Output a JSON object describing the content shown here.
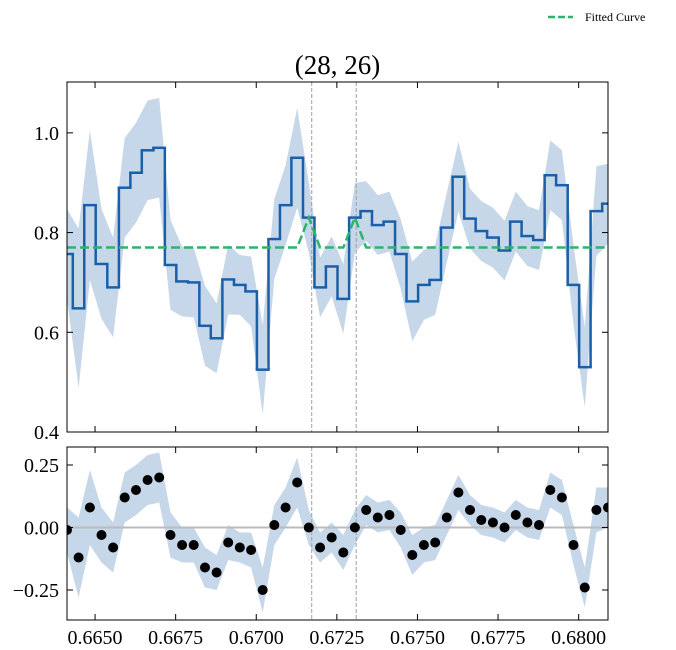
{
  "chart_data": [
    {
      "type": "step",
      "title": "(28, 26)",
      "legend": "upper right",
      "x": [
        0.66413,
        0.66449,
        0.66484,
        0.6652,
        0.66556,
        0.66592,
        0.66627,
        0.66663,
        0.66699,
        0.66734,
        0.6677,
        0.66806,
        0.66841,
        0.66877,
        0.66913,
        0.66949,
        0.66984,
        0.6702,
        0.67056,
        0.67091,
        0.67127,
        0.67163,
        0.67198,
        0.67234,
        0.6727,
        0.67306,
        0.67341,
        0.67377,
        0.67413,
        0.67448,
        0.67484,
        0.6752,
        0.67555,
        0.67591,
        0.67627,
        0.67663,
        0.67698,
        0.67734,
        0.6777,
        0.67805,
        0.67841,
        0.67877,
        0.67912,
        0.67948,
        0.67984,
        0.68019,
        0.68055,
        0.68091
      ],
      "xlim": [
        0.66413,
        0.68091
      ],
      "xticks": [
        0.665,
        0.6675,
        0.67,
        0.6725,
        0.675,
        0.6775,
        0.68
      ],
      "ylim": [
        0.4,
        1.102
      ],
      "yticks": [
        0.4,
        0.6,
        0.8,
        {
          "value": 1.0,
          "label": "1.0"
        }
      ],
      "vlines": [
        0.67172,
        0.6731
      ],
      "series": [
        {
          "color": "#1a5fa8",
          "band_color": "#c6d7ea",
          "values": [
            0.757,
            0.648,
            0.855,
            0.737,
            0.69,
            0.89,
            0.92,
            0.965,
            0.97,
            0.735,
            0.702,
            0.7,
            0.613,
            0.588,
            0.706,
            0.695,
            0.682,
            0.525,
            0.787,
            0.855,
            0.95,
            0.83,
            0.69,
            0.732,
            0.667,
            0.83,
            0.843,
            0.815,
            0.822,
            0.757,
            0.662,
            0.695,
            0.705,
            0.81,
            0.912,
            0.828,
            0.803,
            0.79,
            0.764,
            0.822,
            0.793,
            0.785,
            0.915,
            0.895,
            0.695,
            0.53,
            0.843,
            0.858
          ],
          "errors": [
            0.09,
            0.16,
            0.15,
            0.11,
            0.1,
            0.1,
            0.1,
            0.1,
            0.1,
            0.09,
            0.07,
            0.07,
            0.08,
            0.07,
            0.07,
            0.06,
            0.07,
            0.09,
            0.08,
            0.08,
            0.1,
            0.07,
            0.06,
            0.06,
            0.07,
            0.07,
            0.06,
            0.06,
            0.06,
            0.07,
            0.08,
            0.07,
            0.07,
            0.07,
            0.07,
            0.06,
            0.06,
            0.06,
            0.06,
            0.06,
            0.06,
            0.06,
            0.07,
            0.07,
            0.08,
            0.08,
            0.09,
            0.08
          ]
        },
        {
          "name": "Fitted Curve",
          "color": "#2eb36b",
          "dashed": true,
          "values": [
            0.77,
            0.77,
            0.77,
            0.77,
            0.77,
            0.77,
            0.77,
            0.77,
            0.77,
            0.77,
            0.77,
            0.77,
            0.77,
            0.77,
            0.77,
            0.77,
            0.77,
            0.77,
            0.77,
            0.77,
            0.77,
            0.83,
            0.77,
            0.77,
            0.77,
            0.83,
            0.77,
            0.77,
            0.77,
            0.77,
            0.77,
            0.77,
            0.77,
            0.77,
            0.77,
            0.77,
            0.77,
            0.77,
            0.77,
            0.77,
            0.77,
            0.77,
            0.77,
            0.77,
            0.77,
            0.77,
            0.77,
            0.77
          ]
        }
      ]
    },
    {
      "type": "scatter",
      "x": [
        0.66413,
        0.66449,
        0.66484,
        0.6652,
        0.66556,
        0.66592,
        0.66627,
        0.66663,
        0.66699,
        0.66734,
        0.6677,
        0.66806,
        0.66841,
        0.66877,
        0.66913,
        0.66949,
        0.66984,
        0.6702,
        0.67056,
        0.67091,
        0.67127,
        0.67163,
        0.67198,
        0.67234,
        0.6727,
        0.67306,
        0.67341,
        0.67377,
        0.67413,
        0.67448,
        0.67484,
        0.6752,
        0.67555,
        0.67591,
        0.67627,
        0.67663,
        0.67698,
        0.67734,
        0.6777,
        0.67805,
        0.67841,
        0.67877,
        0.67912,
        0.67948,
        0.67984,
        0.68019,
        0.68055,
        0.68091
      ],
      "xlim": [
        0.66413,
        0.68091
      ],
      "xticks": [
        {
          "value": 0.665,
          "label": "0.6650"
        },
        {
          "value": 0.6675,
          "label": "0.6675"
        },
        {
          "value": 0.67,
          "label": "0.6700"
        },
        {
          "value": 0.6725,
          "label": "0.6725"
        },
        {
          "value": 0.675,
          "label": "0.6750"
        },
        {
          "value": 0.6775,
          "label": "0.6775"
        },
        {
          "value": 0.68,
          "label": "0.6800"
        }
      ],
      "ylim": [
        -0.37,
        0.322
      ],
      "yticks": [
        {
          "value": -0.25,
          "label": "−0.25"
        },
        {
          "value": 0,
          "label": "0.00"
        },
        {
          "value": 0.25,
          "label": "0.25"
        }
      ],
      "hline": 0,
      "vlines": [
        0.67172,
        0.6731
      ],
      "series": [
        {
          "color": "#000000",
          "band_color": "#c6d7ea",
          "values": [
            -0.01,
            -0.12,
            0.08,
            -0.03,
            -0.08,
            0.12,
            0.15,
            0.19,
            0.2,
            -0.03,
            -0.07,
            -0.07,
            -0.16,
            -0.18,
            -0.06,
            -0.08,
            -0.09,
            -0.25,
            0.01,
            0.08,
            0.18,
            0.0,
            -0.08,
            -0.04,
            -0.1,
            0.0,
            0.07,
            0.04,
            0.05,
            -0.01,
            -0.11,
            -0.07,
            -0.06,
            0.04,
            0.14,
            0.07,
            0.03,
            0.02,
            0.0,
            0.05,
            0.02,
            0.01,
            0.15,
            0.12,
            -0.07,
            -0.24,
            0.07,
            0.08
          ],
          "errors": [
            0.09,
            0.16,
            0.15,
            0.11,
            0.1,
            0.1,
            0.1,
            0.1,
            0.1,
            0.09,
            0.07,
            0.07,
            0.08,
            0.07,
            0.07,
            0.06,
            0.07,
            0.09,
            0.08,
            0.08,
            0.1,
            0.07,
            0.06,
            0.06,
            0.07,
            0.07,
            0.06,
            0.06,
            0.06,
            0.07,
            0.08,
            0.07,
            0.07,
            0.07,
            0.07,
            0.06,
            0.06,
            0.06,
            0.06,
            0.06,
            0.06,
            0.06,
            0.07,
            0.07,
            0.08,
            0.08,
            0.09,
            0.08
          ]
        }
      ]
    }
  ]
}
